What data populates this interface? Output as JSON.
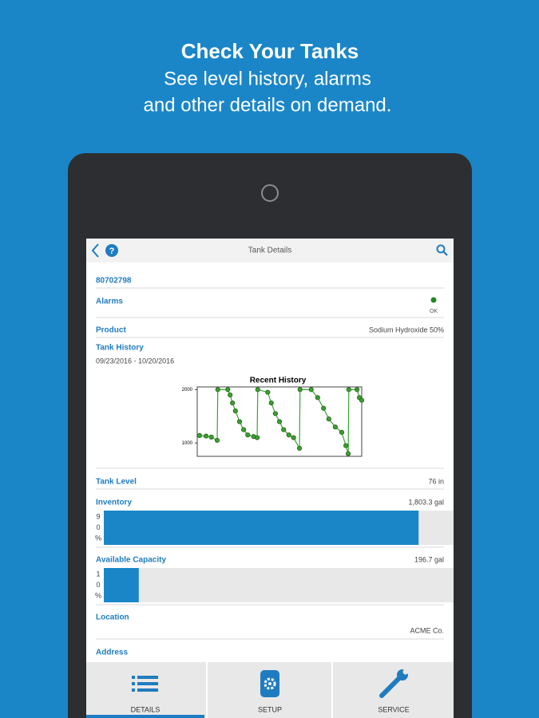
{
  "header": {
    "title": "Check Your Tanks",
    "subtitle_lines": [
      "See level history, alarms",
      "and other details on demand."
    ]
  },
  "app_bar": {
    "title": "Tank Details"
  },
  "tank": {
    "id": "80702798",
    "alarms": {
      "label": "Alarms",
      "status": "OK"
    },
    "product": {
      "label": "Product",
      "value": "Sodium Hydroxide 50%"
    },
    "tank_history": {
      "label": "Tank History",
      "date_range": "09/23/2016 - 10/20/2016"
    },
    "tank_level": {
      "label": "Tank Level",
      "value": "76 in"
    },
    "inventory": {
      "label": "Inventory",
      "value": "1,803.3 gal",
      "percent": 90,
      "percent_label": [
        "9",
        "0",
        "%"
      ]
    },
    "available_capacity": {
      "label": "Available Capacity",
      "value": "196.7 gal",
      "percent": 10,
      "percent_label": [
        "1",
        "0",
        "%"
      ]
    },
    "location": {
      "label": "Location",
      "value": "ACME Co."
    },
    "address": {
      "label": "Address"
    }
  },
  "chart_data": {
    "type": "line",
    "title": "Recent History",
    "x": [
      0.4,
      1.5,
      2.4,
      3.4,
      3.5,
      5.2,
      5.6,
      6.0,
      6.5,
      7.2,
      7.9,
      8.6,
      9.6,
      10.2,
      10.3,
      12.0,
      12.6,
      13.3,
      14.0,
      14.7,
      15.6,
      16.4,
      17.4,
      17.5,
      19.4,
      20.5,
      21.5,
      22.4,
      23.5,
      24.6,
      25.3,
      25.7,
      25.8,
      27.2,
      27.6,
      28.0
    ],
    "values": [
      1140,
      1130,
      1110,
      1050,
      2000,
      2000,
      1900,
      1750,
      1600,
      1400,
      1250,
      1150,
      1120,
      1100,
      2000,
      1950,
      1750,
      1550,
      1400,
      1250,
      1150,
      1100,
      900,
      2000,
      2000,
      1850,
      1650,
      1450,
      1300,
      1200,
      950,
      800,
      2000,
      2000,
      1850,
      1800
    ],
    "xlim": [
      0,
      28
    ],
    "ylim": [
      750,
      2050
    ],
    "yticks": [
      1000,
      2000
    ],
    "color": "#3aa335",
    "marker_color": "#2f6a1c"
  },
  "tabs": [
    "DETAILS",
    "SETUP",
    "SERVICE"
  ]
}
